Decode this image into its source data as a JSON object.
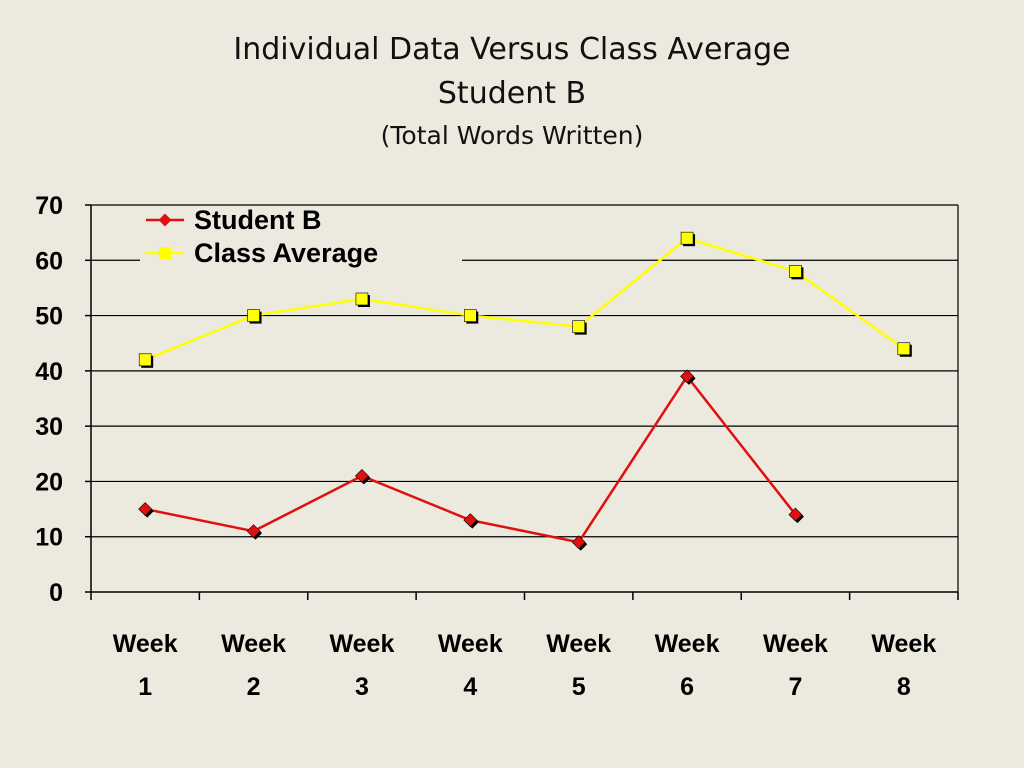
{
  "title": {
    "line1": "Individual Data Versus Class Average",
    "line2": "Student B",
    "line3": "(Total Words Written)"
  },
  "chart_data": {
    "type": "line",
    "title": "Individual Data Versus Class Average Student B (Total Words Written)",
    "categories": [
      [
        "Week",
        "1"
      ],
      [
        "Week",
        "2"
      ],
      [
        "Week",
        "3"
      ],
      [
        "Week",
        "4"
      ],
      [
        "Week",
        "5"
      ],
      [
        "Week",
        "6"
      ],
      [
        "Week",
        "7"
      ],
      [
        "Week",
        "8"
      ]
    ],
    "series": [
      {
        "name": "Student B",
        "color": "#E01010",
        "marker": "diamond",
        "values": [
          15,
          11,
          21,
          13,
          9,
          39,
          14,
          null
        ]
      },
      {
        "name": "Class Average",
        "color": "#FFFF00",
        "marker": "square",
        "values": [
          42,
          50,
          53,
          50,
          48,
          64,
          58,
          44
        ]
      }
    ],
    "ylim": [
      0,
      70
    ],
    "yticks": [
      0,
      10,
      20,
      30,
      40,
      50,
      60,
      70
    ],
    "grid": true,
    "legend": "top-left"
  }
}
